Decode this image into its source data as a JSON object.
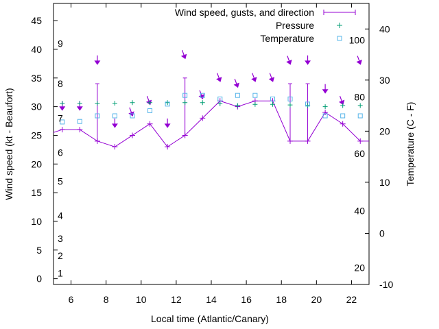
{
  "chart_data": {
    "type": "line",
    "title": "",
    "xlabel": "Local time (Atlantic/Canary)",
    "ylabel": "Wind speed (kt - Beaufort)",
    "y2label": "Temperature (C - F)",
    "xlim": [
      5,
      23
    ],
    "ylim": [
      -1,
      48
    ],
    "y2lim": [
      -10,
      45
    ],
    "x_ticks": [
      6,
      8,
      10,
      12,
      14,
      16,
      18,
      20,
      22
    ],
    "y_ticks": [
      0,
      5,
      10,
      15,
      20,
      25,
      30,
      35,
      40,
      45
    ],
    "y2_ticks": [
      -10,
      0,
      10,
      20,
      30,
      40
    ],
    "beaufort_labels": [
      {
        "label": "1",
        "y": 1
      },
      {
        "label": "2",
        "y": 4
      },
      {
        "label": "3",
        "y": 7
      },
      {
        "label": "4",
        "y": 11
      },
      {
        "label": "5",
        "y": 17
      },
      {
        "label": "6",
        "y": 22
      },
      {
        "label": "7",
        "y": 28
      },
      {
        "label": "8",
        "y": 34
      },
      {
        "label": "9",
        "y": 41
      }
    ],
    "fahrenheit_labels": [
      {
        "label": "20",
        "t": -6.7
      },
      {
        "label": "40",
        "t": 4.4
      },
      {
        "label": "60",
        "t": 15.6
      },
      {
        "label": "80",
        "t": 26.7
      },
      {
        "label": "100",
        "t": 37.8
      }
    ],
    "legend": [
      {
        "label": "Wind speed, gusts, and direction"
      },
      {
        "label": "Pressure"
      },
      {
        "label": "Temperature"
      }
    ],
    "legend_position": "top-right",
    "series": [
      {
        "name": "Wind speed",
        "x": [
          5,
          5.5,
          6.5,
          7.5,
          8.5,
          9.5,
          10.5,
          11.5,
          12.5,
          13.5,
          14.5,
          15.5,
          16.5,
          17.5,
          18.5,
          19.5,
          20.5,
          21.5,
          22.5,
          23
        ],
        "values": [
          25.5,
          26,
          26,
          24,
          23,
          25,
          27,
          23,
          25,
          28,
          31,
          30,
          31,
          31,
          24,
          24,
          29,
          27,
          24,
          24
        ]
      },
      {
        "name": "Gusts",
        "x": [
          7.5,
          12.5,
          18.5,
          19.5
        ],
        "values": [
          34,
          35,
          34,
          34
        ]
      },
      {
        "name": "Wind direction",
        "x": [
          5.5,
          6.5,
          7.5,
          8.5,
          9.5,
          10.5,
          11.5,
          12.5,
          13.5,
          14.5,
          15.5,
          16.5,
          17.5,
          18.5,
          19.5,
          20.5,
          21.5,
          22.5
        ],
        "values": [
          29.5,
          29.5,
          37.5,
          26.5,
          28.5,
          30.5,
          26.5,
          38.5,
          31.5,
          34.5,
          33.5,
          34.5,
          34.5,
          37.5,
          37.5,
          32.5,
          30.5,
          37.5
        ],
        "angles": [
          0,
          0,
          0,
          0,
          20,
          20,
          0,
          20,
          20,
          20,
          20,
          20,
          20,
          20,
          0,
          0,
          20,
          20
        ]
      },
      {
        "name": "Pressure",
        "x": [
          5.5,
          6.5,
          7.5,
          8.5,
          9.5,
          10.5,
          11.5,
          12.5,
          13.5,
          14.5,
          15.5,
          16.5,
          17.5,
          18.5,
          19.5,
          20.5,
          21.5,
          22.5
        ],
        "values": [
          30.6,
          30.6,
          30.6,
          30.6,
          30.7,
          30.7,
          30.7,
          30.7,
          30.7,
          30.5,
          30.2,
          30.4,
          30.4,
          30.3,
          30.2,
          30.0,
          30.2,
          30.2
        ]
      },
      {
        "name": "Temperature",
        "x": [
          5.5,
          6.5,
          7.5,
          8.5,
          9.5,
          10.5,
          11.5,
          12.5,
          13.5,
          14.5,
          15.5,
          16.5,
          17.5,
          18.5,
          19.5,
          20.5,
          21.5,
          22.5
        ],
        "values": [
          21.8,
          21.9,
          23.0,
          23.0,
          23.0,
          24.0,
          25.3,
          27.0,
          27.0,
          26.3,
          27.0,
          27.0,
          26.3,
          26.3,
          25.3,
          23.0,
          23.0,
          23.0
        ]
      }
    ]
  }
}
